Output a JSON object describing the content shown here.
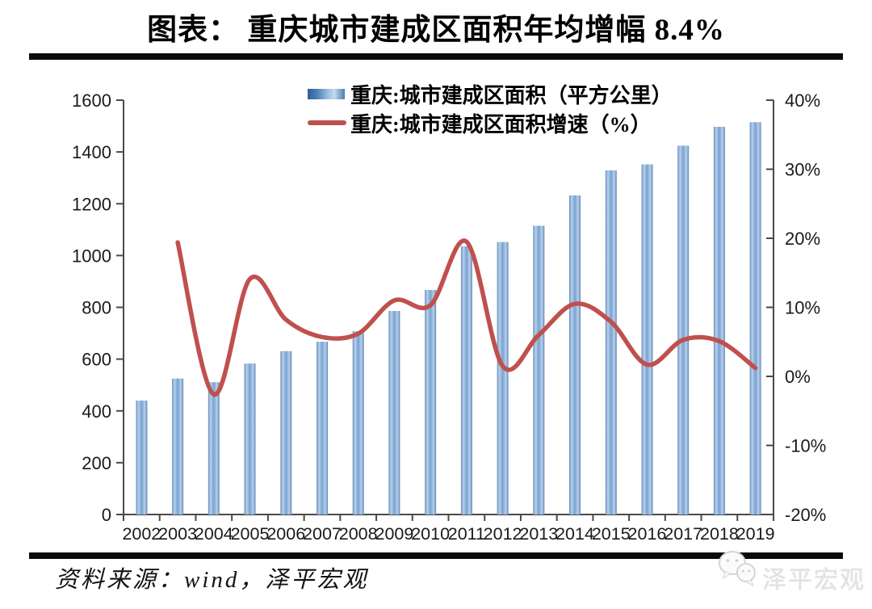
{
  "page": {
    "title": "图表： 重庆城市建成区面积年均增幅 8.4%"
  },
  "chart_data": {
    "type": "bar+line",
    "title": "图表： 重庆城市建成区面积年均增幅 8.4%",
    "categories": [
      "2002",
      "2003",
      "2004",
      "2005",
      "2006",
      "2007",
      "2008",
      "2009",
      "2010",
      "2011",
      "2012",
      "2013",
      "2014",
      "2015",
      "2016",
      "2017",
      "2018",
      "2019"
    ],
    "series": [
      {
        "name": "重庆:城市建成区面积（平方公里）",
        "type": "bar",
        "axis": "left",
        "values": [
          440,
          525,
          511,
          583,
          631,
          667,
          708,
          786,
          867,
          1036,
          1052,
          1115,
          1232,
          1329,
          1352,
          1424,
          1497,
          1515
        ]
      },
      {
        "name": "重庆:城市建成区面积增速（%）",
        "type": "line",
        "axis": "right",
        "values": [
          null,
          19.4,
          -2.6,
          14.1,
          8.2,
          5.7,
          6.2,
          11.0,
          10.3,
          19.5,
          1.5,
          6.0,
          10.5,
          7.9,
          1.7,
          5.3,
          5.1,
          1.2
        ]
      }
    ],
    "left_axis": {
      "min": 0,
      "max": 1600,
      "step": 200,
      "tick_labels": [
        "1600",
        "1400",
        "1200",
        "1000",
        "800",
        "600",
        "400",
        "200",
        "0"
      ]
    },
    "right_axis": {
      "min": -20,
      "max": 40,
      "step": 10,
      "tick_labels": [
        "40%",
        "30%",
        "20%",
        "10%",
        "0%",
        "-10%",
        "-20%"
      ]
    },
    "grid": "off",
    "legend_position": "top-center",
    "colors": {
      "bar_edge": "#5d87b6",
      "bar_light": "#b9d0ea",
      "bar_mid": "#78a2d2",
      "line": "#c0504d",
      "axis": "#4a4a4a",
      "tick_text": "#1a1a1a"
    }
  },
  "footer": {
    "source": "资料来源：wind，泽平宏观",
    "logo_text": "泽平宏观",
    "logo_icon": "wechat-bubbles-icon"
  }
}
